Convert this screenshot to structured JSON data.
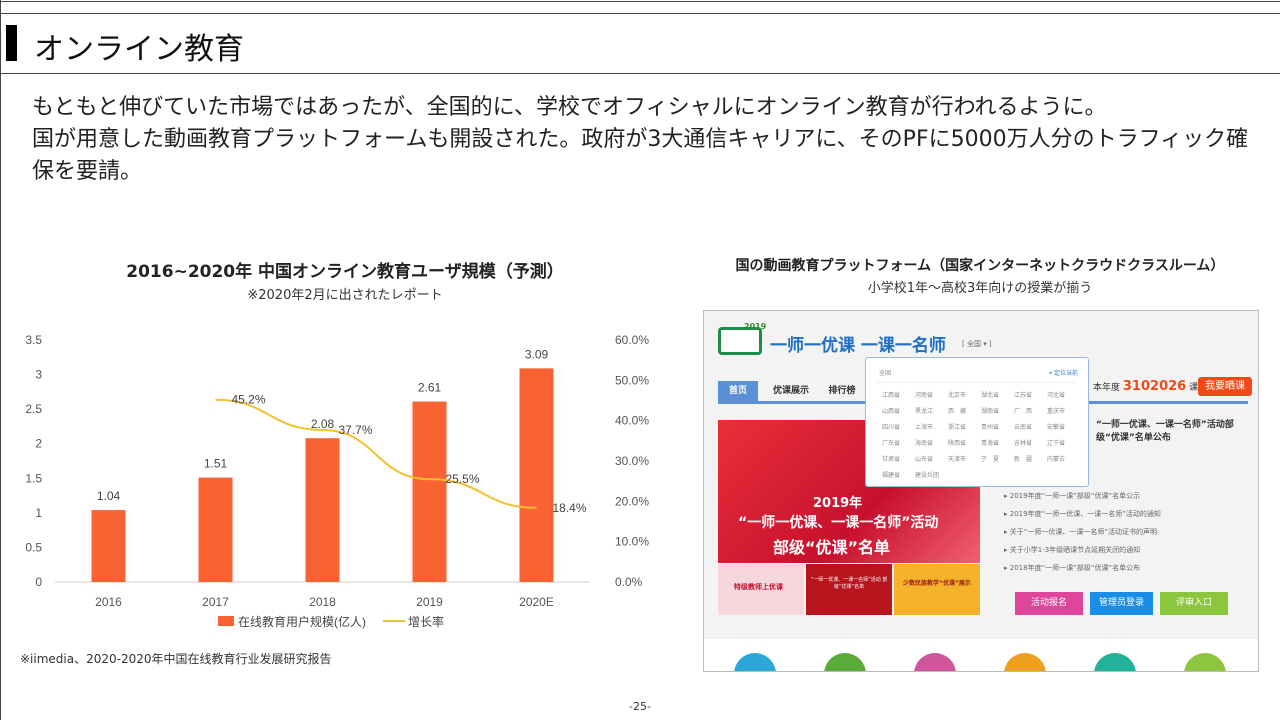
{
  "slide": {
    "title": "オンライン教育",
    "body": [
      "もともと伸びていた市場ではあったが、全国的に、学校でオフィシャルにオンライン教育が行われるように。",
      "国が用意した動画教育プラットフォームも開設された。政府が3大通信キャリアに、そのPFに5000万人分のトラフィック確保を要請。"
    ],
    "page_number": "-25-"
  },
  "chart_data": {
    "type": "bar+line",
    "title": "2016~2020年 中国オンライン教育ユーザ規模（予測）",
    "subtitle": "※2020年2月に出されたレポート",
    "categories": [
      "2016",
      "2017",
      "2018",
      "2019",
      "2020E"
    ],
    "series": [
      {
        "name": "在线教育用户规模(亿人)",
        "type": "bar",
        "axis": "left",
        "color": "#f96232",
        "values": [
          1.04,
          1.51,
          2.08,
          2.61,
          3.09
        ],
        "labels": [
          "1.04",
          "1.51",
          "2.08",
          "2.61",
          "3.09"
        ]
      },
      {
        "name": "增长率",
        "type": "line",
        "axis": "right",
        "color": "#f2c12e",
        "values": [
          null,
          45.2,
          37.7,
          25.5,
          18.4
        ],
        "labels": [
          "",
          "45.2%",
          "37.7%",
          "25.5%",
          "18.4%"
        ]
      }
    ],
    "y_left": {
      "range": [
        0,
        3.5
      ],
      "ticks": [
        "0",
        "0.5",
        "1",
        "1.5",
        "2",
        "2.5",
        "3",
        "3.5"
      ]
    },
    "y_right": {
      "range": [
        0,
        60
      ],
      "ticks": [
        "0.0%",
        "10.0%",
        "20.0%",
        "30.0%",
        "40.0%",
        "50.0%",
        "60.0%"
      ]
    },
    "grid": false,
    "legend": "bottom",
    "source": "※iimedia、2020-2020年中国在线教育行业发展研究报告"
  },
  "screenshot": {
    "title": "国の動画教育プラットフォーム（国家インターネットクラウドクラスルーム）",
    "subtitle": "小学校1年〜高校3年向けの授業が揃う",
    "logo_year": "2019",
    "site_name": "一师一优课 一课一名师",
    "region_select": "全国",
    "tabs": [
      "首页",
      "优课展示",
      "排行榜"
    ],
    "count_label": "本年度",
    "count": "3102026",
    "count_unit": "课",
    "cta": "我要晒课",
    "dropdown": {
      "header": "全国",
      "locate": "定位当前",
      "provinces": [
        "江西省",
        "河南省",
        "北京市",
        "湖北省",
        "江苏省",
        "河北省",
        "山西省",
        "黑龙江",
        "西　藏",
        "湖南省",
        "广　西",
        "重庆市",
        "四川省",
        "上海市",
        "浙江省",
        "贵州省",
        "云南省",
        "安徽省",
        "广东省",
        "海南省",
        "陕西省",
        "青海省",
        "吉林省",
        "辽宁省",
        "甘肃省",
        "山东省",
        "天津市",
        "宁　夏",
        "新　疆",
        "内蒙古",
        "福建省",
        "建设兵团"
      ]
    },
    "banner": {
      "year": "2019年",
      "line1": "“一师一优课、一课一名师”活动",
      "line2": "部级“优课”名单"
    },
    "thumbs": [
      "特级教师上优课",
      "“一师一优课、一课一名师”活动 部级“优课”名单",
      "少数民族教学“优课”展示"
    ],
    "headline": "“一师一优课、一课一名师”活动部级“优课”名单公布",
    "news": [
      "2019年度“一师一课”部级“优课”名单公示",
      "2019年度“一师一优课、一课一名师”活动的通知",
      "关于“一师一优课、一课一名师”活动证书的声明",
      "关于小学1-3年级晒课节点延期关闭的通知",
      "2018年度“一师一课”部级“优课”名单公布"
    ],
    "buttons": [
      {
        "label": "活动报名",
        "color": "#e0459c"
      },
      {
        "label": "管理员登录",
        "color": "#1a8ee6"
      },
      {
        "label": "评审入口",
        "color": "#8cc63f"
      }
    ],
    "icon_colors": [
      "#2aa8d8",
      "#5aaa3c",
      "#d0559b",
      "#f0a020",
      "#20b39a",
      "#8cc63f"
    ]
  }
}
